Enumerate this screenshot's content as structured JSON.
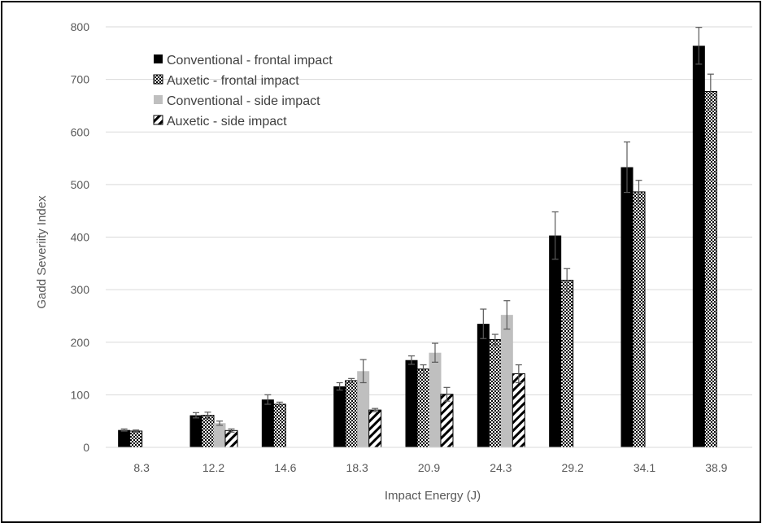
{
  "chart_data": {
    "type": "bar",
    "title": "",
    "xlabel": "Impact Energy (J)",
    "ylabel": "Gadd Severiity Index",
    "ylim": [
      0,
      800
    ],
    "yticks": [
      "0",
      "100",
      "200",
      "300",
      "400",
      "500",
      "600",
      "700",
      "800"
    ],
    "categories": [
      "8.3",
      "12.2",
      "14.6",
      "18.3",
      "20.9",
      "24.3",
      "29.2",
      "34.1",
      "38.9"
    ],
    "grid": true,
    "legend_position": "top-left",
    "error_bars": true,
    "series": [
      {
        "name": "Conventional - frontal impact",
        "fill": "solid-black",
        "color": "#000000",
        "values": [
          33,
          61,
          91,
          116,
          166,
          235,
          403,
          533,
          764
        ],
        "errors": [
          2,
          5,
          9,
          7,
          8,
          28,
          45,
          48,
          35
        ]
      },
      {
        "name": "Auxetic - frontal impact",
        "fill": "dotted",
        "color": "#000000",
        "values": [
          31,
          61,
          82,
          127,
          149,
          205,
          318,
          486,
          677
        ],
        "errors": [
          2,
          6,
          4,
          4,
          8,
          10,
          22,
          22,
          33
        ]
      },
      {
        "name": "Conventional - side impact",
        "fill": "solid-gray",
        "color": "#bfbfbf",
        "values": [
          null,
          46,
          null,
          145,
          180,
          252,
          null,
          null,
          null
        ],
        "errors": [
          null,
          4,
          null,
          22,
          18,
          27,
          null,
          null,
          null
        ]
      },
      {
        "name": "Auxetic - side impact",
        "fill": "diagonal-hatch",
        "color": "#000000",
        "values": [
          null,
          32,
          null,
          71,
          101,
          140,
          null,
          null,
          null
        ],
        "errors": [
          null,
          3,
          null,
          3,
          13,
          17,
          null,
          null,
          null
        ]
      }
    ]
  }
}
